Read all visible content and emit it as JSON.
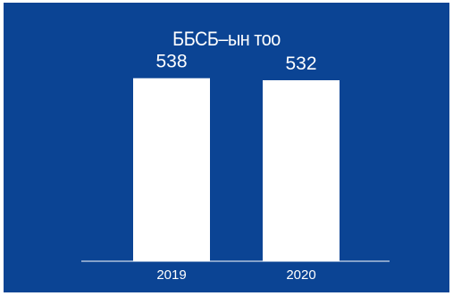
{
  "chart_data": {
    "type": "bar",
    "title": "ББСБ–ын тоо",
    "categories": [
      "2019",
      "2020"
    ],
    "values": [
      538,
      532
    ],
    "ylim": [
      0,
      760
    ],
    "grid": false,
    "colors": {
      "background": "#0b4494",
      "bar": "#ffffff",
      "text": "#ffffff",
      "axis": "#ffffff"
    }
  }
}
